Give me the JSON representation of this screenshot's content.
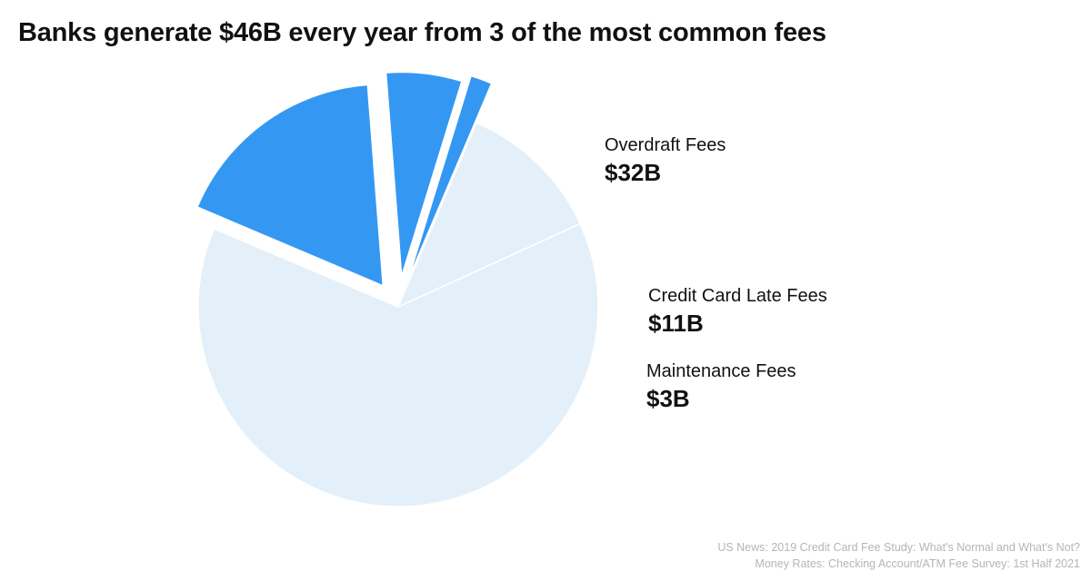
{
  "title": "Banks generate $46B every year from 3 of the most common fees",
  "chart_data": {
    "type": "pie",
    "title": "Banks generate $46B every year from 3 of the most common fees",
    "unit": "USD billions per year",
    "slices": [
      {
        "name": "Overdraft Fees",
        "value_label": "$32B",
        "value": 32,
        "highlight": true
      },
      {
        "name": "Credit Card Late Fees",
        "value_label": "$11B",
        "value": 11,
        "highlight": true
      },
      {
        "name": "Maintenance Fees",
        "value_label": "$3B",
        "value": 3,
        "highlight": true
      }
    ],
    "background_slices": [
      {
        "name": "",
        "approx_share": 0.11
      },
      {
        "name": "",
        "approx_share": 0.59
      }
    ],
    "total_label": "$46B",
    "highlight_color": "#3498f3",
    "background_color": "#e3f0f9"
  },
  "sources": [
    "US News: 2019 Credit Card Fee Study: What's Normal and What's Not?",
    "Money Rates: Checking Account/ATM Fee Survey: 1st Half 2021"
  ]
}
